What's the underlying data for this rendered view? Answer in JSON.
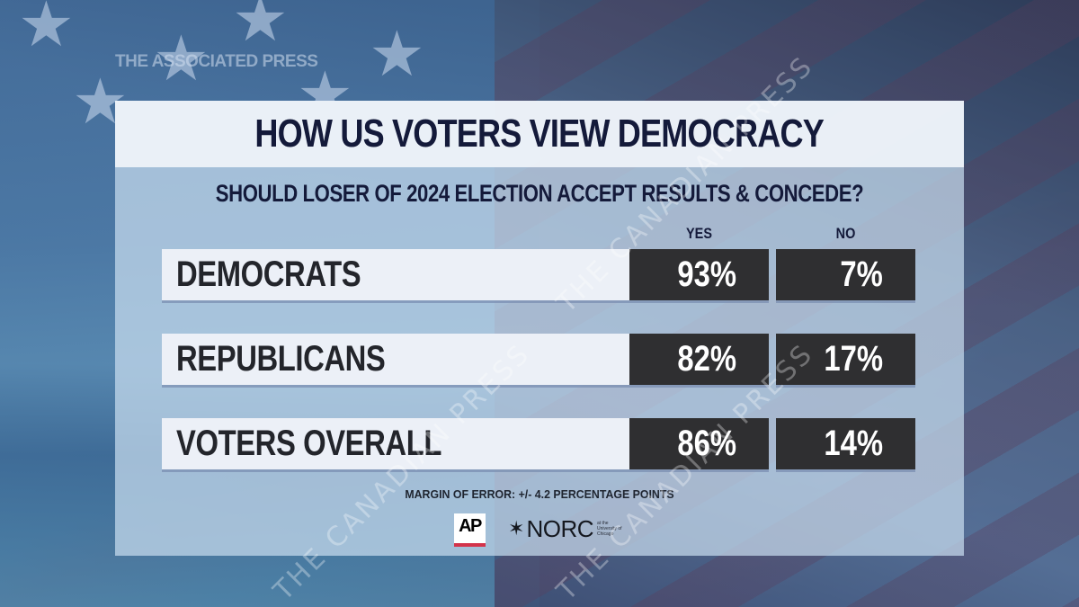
{
  "watermarks": {
    "ap": "THE ASSOCIATED PRESS",
    "cp": "THE CANADIAN PRESS"
  },
  "chart_data": {
    "type": "table",
    "title": "HOW US VOTERS VIEW DEMOCRACY",
    "subtitle": "SHOULD LOSER OF 2024 ELECTION ACCEPT RESULTS & CONCEDE?",
    "columns": [
      "YES",
      "NO"
    ],
    "categories": [
      "DEMOCRATS",
      "REPUBLICANS",
      "VOTERS OVERALL"
    ],
    "series": [
      {
        "name": "YES",
        "values": [
          93,
          82,
          86
        ]
      },
      {
        "name": "NO",
        "values": [
          7,
          17,
          14
        ]
      }
    ],
    "display_values": {
      "yes": [
        "93%",
        "82%",
        "86%"
      ],
      "no": [
        "7%",
        "17%",
        "14%"
      ]
    },
    "unit": "%",
    "note": "MARGIN OF ERROR: +/- 4.2 PERCENTAGE POINTS"
  },
  "footer": {
    "ap_logo": "AP",
    "norc_logo": "NORC",
    "norc_sub": "at the University of Chicago",
    "norc_icon": "star-asterisk-icon"
  },
  "colors": {
    "title_text": "#141a3a",
    "value_box": "#2f2f31",
    "ap_red": "#d3334a"
  }
}
